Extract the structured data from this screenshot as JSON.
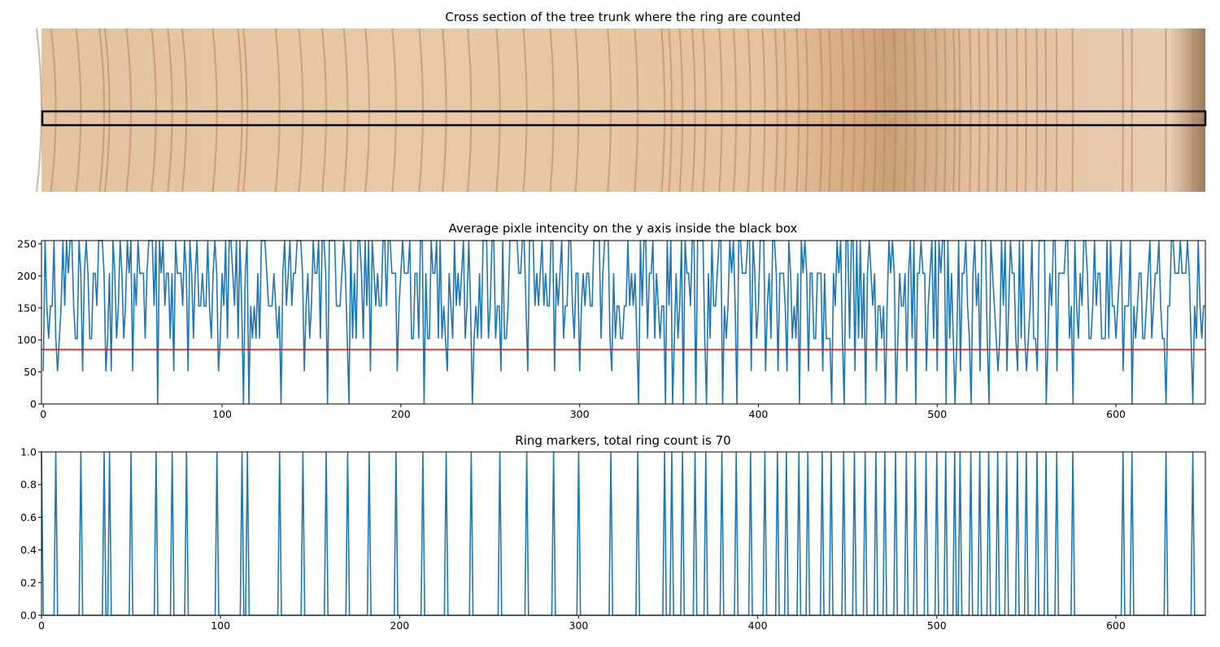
{
  "panels": [
    {
      "title": "Cross section of the tree trunk where the ring are counted",
      "type": "image",
      "image_kind": "wood-cross-section",
      "colors": {
        "light": "#e6c7a4",
        "ring": "#b98554",
        "dark_band": "#a8733f",
        "box": "#000000"
      },
      "box_note": "horizontal black rectangle marks the sampled strip"
    },
    {
      "title": "Average pixle intencity on the y axis inside the black box",
      "type": "line"
    },
    {
      "title": "Ring markers, total ring count is 70",
      "type": "line"
    }
  ],
  "chart_data": [
    {
      "type": "line",
      "title": "Average pixle intencity on the y axis inside the black box",
      "xlabel": "",
      "ylabel": "",
      "xlim": [
        -1,
        650
      ],
      "ylim": [
        0,
        255
      ],
      "xticks": [
        "0",
        "100",
        "200",
        "300",
        "400",
        "500",
        "600"
      ],
      "yticks": [
        "0",
        "50",
        "100",
        "150",
        "200",
        "250"
      ],
      "grid": false,
      "series": [
        {
          "color": "#1f77b4",
          "values_note": "quantized intensity levels 0,51,102,153,204,255 sampled every 1 px across 650 columns",
          "levels": [
            0,
            51,
            102,
            153,
            204,
            255
          ]
        }
      ],
      "threshold": {
        "value": 85,
        "color": "#ff0000"
      }
    },
    {
      "type": "line",
      "title": "Ring markers, total ring count is 70",
      "xlabel": "",
      "ylabel": "",
      "xlim": [
        0,
        650
      ],
      "ylim": [
        0,
        1
      ],
      "xticks": [
        "0",
        "100",
        "200",
        "300",
        "400",
        "500",
        "600"
      ],
      "yticks": [
        "0.0",
        "0.2",
        "0.4",
        "0.6",
        "0.8",
        "1.0"
      ],
      "grid": false,
      "series": [
        {
          "color": "#1f77b4",
          "marker_positions": [
            0,
            8,
            22,
            35,
            38,
            50,
            64,
            73,
            81,
            98,
            112,
            115,
            133,
            146,
            159,
            171,
            183,
            198,
            213,
            226,
            240,
            256,
            271,
            286,
            300,
            318,
            333,
            348,
            352,
            358,
            365,
            371,
            380,
            388,
            396,
            404,
            411,
            416,
            423,
            428,
            436,
            441,
            448,
            454,
            460,
            466,
            471,
            477,
            483,
            488,
            494,
            500,
            505,
            510,
            513,
            519,
            524,
            529,
            534,
            539,
            545,
            550,
            556,
            561,
            567,
            576,
            604,
            609,
            628,
            643
          ]
        }
      ],
      "total_rings": 70
    }
  ]
}
